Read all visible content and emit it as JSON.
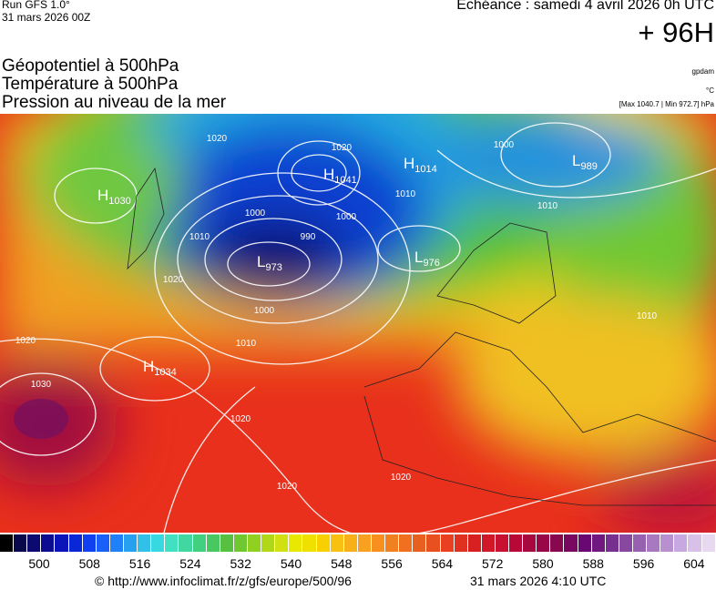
{
  "header": {
    "run": "Run GFS 1.0°",
    "date": "31 mars 2026 00Z",
    "echeance": "Échéance : samedi 4 avril 2026 0h UTC",
    "lead": "+ 96H"
  },
  "titles": [
    "Géopotentiel à 500hPa",
    "Température à 500hPa",
    "Pression au niveau de la mer"
  ],
  "units": {
    "geopotential": "gpdam",
    "temperature": "°C",
    "pressure": "[Max 1040.7 | Min 972.7] hPa"
  },
  "centers": [
    {
      "kind": "H",
      "value": "1030"
    },
    {
      "kind": "H",
      "value": "1041"
    },
    {
      "kind": "H",
      "value": "1014"
    },
    {
      "kind": "L",
      "value": "989"
    },
    {
      "kind": "L",
      "value": "973"
    },
    {
      "kind": "L",
      "value": "976"
    },
    {
      "kind": "H",
      "value": "1034"
    }
  ],
  "isobar_labels": [
    "1020",
    "1020",
    "1010",
    "1000",
    "1010",
    "1000",
    "990",
    "1000",
    "1010",
    "1020",
    "1000",
    "1010",
    "1020",
    "1030",
    "1020",
    "1020",
    "1020",
    "1010"
  ],
  "colorbar": {
    "labels": [
      500,
      508,
      516,
      524,
      532,
      540,
      548,
      556,
      564,
      572,
      580,
      588,
      596,
      604
    ]
  },
  "footer": {
    "url": "© http://www.infoclimat.fr/z/gfs/europe/500/96",
    "timestamp": "31 mars 2026  4:10 UTC"
  }
}
